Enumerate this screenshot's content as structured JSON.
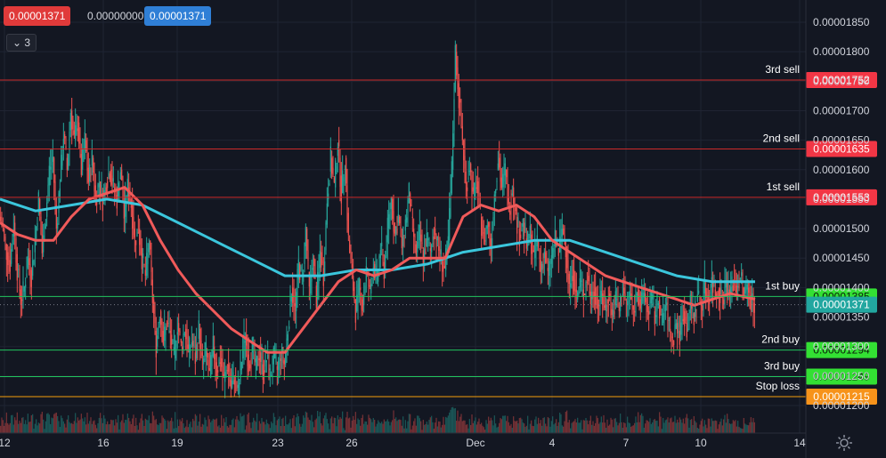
{
  "header": {
    "sell_price": "0.00001371",
    "spread": "0.00000000",
    "buy_price": "0.00001371",
    "indicator_toggle_label": "3",
    "indicator_chevron_icon": "chevron-down-icon"
  },
  "colors": {
    "background": "#131722",
    "grid": "#1f2433",
    "text": "#d1d4dc",
    "up_candle": "#26a69a",
    "down_candle": "#ef5350",
    "sell_line": "#cc2a2a",
    "buy_line": "#22c55e",
    "stop_line": "#f59e0b",
    "ma_fast": "#f05a5a",
    "ma_slow": "#3bc6dc",
    "sell_tag": "#f23645",
    "buy_tag": "#33e033",
    "stop_tag": "#f7931a",
    "current_tag": "#22a7a0"
  },
  "settings_icon": "gear-icon",
  "chart_data": {
    "type": "candlestick",
    "ylim": [
      1.17e-05,
      1.87e-05
    ],
    "y_ticks": [
      "0.00001850",
      "0.00001800",
      "0.00001750",
      "0.00001700",
      "0.00001650",
      "0.00001600",
      "0.00001550",
      "0.00001500",
      "0.00001450",
      "0.00001400",
      "0.00001350",
      "0.00001300",
      "0.00001250",
      "0.00001200"
    ],
    "x_ticks": [
      "12",
      "16",
      "19",
      "23",
      "26",
      "Dec",
      "4",
      "7",
      "10",
      "14"
    ],
    "levels": [
      {
        "label": "3rd sell",
        "value": "0.00001752",
        "kind": "sell"
      },
      {
        "label": "2nd sell",
        "value": "0.00001635",
        "kind": "sell"
      },
      {
        "label": "1st sell",
        "value": "0.00001553",
        "kind": "sell"
      },
      {
        "label": "1st buy",
        "value": "0.00001385",
        "kind": "buy"
      },
      {
        "label": "2nd buy",
        "value": "0.00001294",
        "kind": "buy"
      },
      {
        "label": "3rd buy",
        "value": "0.00001249",
        "kind": "buy"
      },
      {
        "label": "Stop loss",
        "value": "0.00001215",
        "kind": "stop"
      }
    ],
    "current_price": "0.00001371",
    "close_points": [
      [
        0,
        1.52e-05
      ],
      [
        4,
        1.5e-05
      ],
      [
        8,
        1.46e-05
      ],
      [
        12,
        1.44e-05
      ],
      [
        16,
        1.51e-05
      ],
      [
        20,
        1.43e-05
      ],
      [
        24,
        1.38e-05
      ],
      [
        28,
        1.4e-05
      ],
      [
        32,
        1.45e-05
      ],
      [
        36,
        1.42e-05
      ],
      [
        40,
        1.48e-05
      ],
      [
        44,
        1.55e-05
      ],
      [
        48,
        1.46e-05
      ],
      [
        52,
        1.52e-05
      ],
      [
        56,
        1.6e-05
      ],
      [
        60,
        1.62e-05
      ],
      [
        64,
        1.5e-05
      ],
      [
        68,
        1.58e-05
      ],
      [
        72,
        1.66e-05
      ],
      [
        76,
        1.6e-05
      ],
      [
        80,
        1.7e-05
      ],
      [
        84,
        1.65e-05
      ],
      [
        88,
        1.68e-05
      ],
      [
        92,
        1.6e-05
      ],
      [
        96,
        1.65e-05
      ],
      [
        100,
        1.58e-05
      ],
      [
        104,
        1.62e-05
      ],
      [
        108,
        1.55e-05
      ],
      [
        112,
        1.58e-05
      ],
      [
        116,
        1.55e-05
      ],
      [
        120,
        1.58e-05
      ],
      [
        124,
        1.6e-05
      ],
      [
        128,
        1.57e-05
      ],
      [
        132,
        1.55e-05
      ],
      [
        136,
        1.6e-05
      ],
      [
        140,
        1.52e-05
      ],
      [
        144,
        1.57e-05
      ],
      [
        148,
        1.54e-05
      ],
      [
        152,
        1.48e-05
      ],
      [
        156,
        1.5e-05
      ],
      [
        160,
        1.45e-05
      ],
      [
        164,
        1.42e-05
      ],
      [
        168,
        1.48e-05
      ],
      [
        172,
        1.38e-05
      ],
      [
        176,
        1.3e-05
      ],
      [
        180,
        1.36e-05
      ],
      [
        184,
        1.31e-05
      ],
      [
        188,
        1.34e-05
      ],
      [
        192,
        1.32e-05
      ],
      [
        196,
        1.28e-05
      ],
      [
        200,
        1.34e-05
      ],
      [
        204,
        1.3e-05
      ],
      [
        208,
        1.33e-05
      ],
      [
        212,
        1.29e-05
      ],
      [
        216,
        1.31e-05
      ],
      [
        220,
        1.28e-05
      ],
      [
        224,
        1.33e-05
      ],
      [
        228,
        1.27e-05
      ],
      [
        232,
        1.29e-05
      ],
      [
        236,
        1.25e-05
      ],
      [
        240,
        1.3e-05
      ],
      [
        244,
        1.26e-05
      ],
      [
        248,
        1.28e-05
      ],
      [
        252,
        1.24e-05
      ],
      [
        256,
        1.27e-05
      ],
      [
        260,
        1.23e-05
      ],
      [
        264,
        1.25e-05
      ],
      [
        268,
        1.22e-05
      ],
      [
        272,
        1.28e-05
      ],
      [
        276,
        1.32e-05
      ],
      [
        280,
        1.27e-05
      ],
      [
        284,
        1.3e-05
      ],
      [
        288,
        1.26e-05
      ],
      [
        292,
        1.29e-05
      ],
      [
        296,
        1.26e-05
      ],
      [
        300,
        1.28e-05
      ],
      [
        304,
        1.25e-05
      ],
      [
        308,
        1.28e-05
      ],
      [
        312,
        1.26e-05
      ],
      [
        316,
        1.29e-05
      ],
      [
        320,
        1.27e-05
      ],
      [
        324,
        1.33e-05
      ],
      [
        328,
        1.4e-05
      ],
      [
        332,
        1.36e-05
      ],
      [
        336,
        1.44e-05
      ],
      [
        340,
        1.41e-05
      ],
      [
        344,
        1.5e-05
      ],
      [
        348,
        1.39e-05
      ],
      [
        352,
        1.45e-05
      ],
      [
        356,
        1.38e-05
      ],
      [
        360,
        1.46e-05
      ],
      [
        364,
        1.42e-05
      ],
      [
        368,
        1.55e-05
      ],
      [
        372,
        1.62e-05
      ],
      [
        376,
        1.57e-05
      ],
      [
        380,
        1.65e-05
      ],
      [
        384,
        1.56e-05
      ],
      [
        388,
        1.62e-05
      ],
      [
        392,
        1.48e-05
      ],
      [
        396,
        1.42e-05
      ],
      [
        400,
        1.36e-05
      ],
      [
        404,
        1.4e-05
      ],
      [
        408,
        1.37e-05
      ],
      [
        412,
        1.43e-05
      ],
      [
        416,
        1.39e-05
      ],
      [
        420,
        1.44e-05
      ],
      [
        424,
        1.41e-05
      ],
      [
        428,
        1.47e-05
      ],
      [
        432,
        1.43e-05
      ],
      [
        436,
        1.5e-05
      ],
      [
        440,
        1.55e-05
      ],
      [
        444,
        1.49e-05
      ],
      [
        448,
        1.52e-05
      ],
      [
        452,
        1.47e-05
      ],
      [
        456,
        1.51e-05
      ],
      [
        460,
        1.56e-05
      ],
      [
        464,
        1.5e-05
      ],
      [
        468,
        1.46e-05
      ],
      [
        472,
        1.49e-05
      ],
      [
        476,
        1.45e-05
      ],
      [
        480,
        1.48e-05
      ],
      [
        484,
        1.46e-05
      ],
      [
        488,
        1.5e-05
      ],
      [
        492,
        1.47e-05
      ],
      [
        496,
        1.45e-05
      ],
      [
        500,
        1.43e-05
      ],
      [
        504,
        1.48e-05
      ],
      [
        508,
        1.6e-05
      ],
      [
        512,
        1.8e-05
      ],
      [
        516,
        1.72e-05
      ],
      [
        520,
        1.65e-05
      ],
      [
        524,
        1.57e-05
      ],
      [
        528,
        1.61e-05
      ],
      [
        532,
        1.55e-05
      ],
      [
        536,
        1.58e-05
      ],
      [
        540,
        1.52e-05
      ],
      [
        544,
        1.48e-05
      ],
      [
        548,
        1.51e-05
      ],
      [
        552,
        1.47e-05
      ],
      [
        556,
        1.56e-05
      ],
      [
        560,
        1.62e-05
      ],
      [
        564,
        1.57e-05
      ],
      [
        568,
        1.6e-05
      ],
      [
        572,
        1.53e-05
      ],
      [
        576,
        1.57e-05
      ],
      [
        580,
        1.52e-05
      ],
      [
        584,
        1.49e-05
      ],
      [
        588,
        1.51e-05
      ],
      [
        592,
        1.47e-05
      ],
      [
        596,
        1.49e-05
      ],
      [
        600,
        1.45e-05
      ],
      [
        604,
        1.48e-05
      ],
      [
        608,
        1.43e-05
      ],
      [
        612,
        1.46e-05
      ],
      [
        616,
        1.42e-05
      ],
      [
        620,
        1.45e-05
      ],
      [
        624,
        1.48e-05
      ],
      [
        628,
        1.46e-05
      ],
      [
        632,
        1.5e-05
      ],
      [
        636,
        1.47e-05
      ],
      [
        640,
        1.4e-05
      ],
      [
        644,
        1.43e-05
      ],
      [
        648,
        1.38e-05
      ],
      [
        652,
        1.41e-05
      ],
      [
        656,
        1.39e-05
      ],
      [
        660,
        1.42e-05
      ],
      [
        664,
        1.38e-05
      ],
      [
        668,
        1.4e-05
      ],
      [
        672,
        1.37e-05
      ],
      [
        676,
        1.39e-05
      ],
      [
        680,
        1.36e-05
      ],
      [
        684,
        1.39e-05
      ],
      [
        688,
        1.35e-05
      ],
      [
        692,
        1.38e-05
      ],
      [
        696,
        1.36e-05
      ],
      [
        700,
        1.4e-05
      ],
      [
        704,
        1.37e-05
      ],
      [
        708,
        1.39e-05
      ],
      [
        712,
        1.36e-05
      ],
      [
        716,
        1.4e-05
      ],
      [
        720,
        1.37e-05
      ],
      [
        724,
        1.39e-05
      ],
      [
        728,
        1.36e-05
      ],
      [
        732,
        1.38e-05
      ],
      [
        736,
        1.35e-05
      ],
      [
        740,
        1.38e-05
      ],
      [
        744,
        1.34e-05
      ],
      [
        748,
        1.37e-05
      ],
      [
        752,
        1.33e-05
      ],
      [
        756,
        1.31e-05
      ],
      [
        760,
        1.34e-05
      ],
      [
        764,
        1.32e-05
      ],
      [
        768,
        1.36e-05
      ],
      [
        772,
        1.33e-05
      ],
      [
        776,
        1.37e-05
      ],
      [
        780,
        1.35e-05
      ],
      [
        784,
        1.39e-05
      ],
      [
        788,
        1.37e-05
      ],
      [
        792,
        1.4e-05
      ],
      [
        796,
        1.38e-05
      ],
      [
        800,
        1.41e-05
      ],
      [
        804,
        1.39e-05
      ],
      [
        808,
        1.4e-05
      ],
      [
        812,
        1.38e-05
      ],
      [
        816,
        1.41e-05
      ],
      [
        820,
        1.39e-05
      ],
      [
        824,
        1.41e-05
      ],
      [
        828,
        1.4e-05
      ],
      [
        832,
        1.42e-05
      ],
      [
        836,
        1.39e-05
      ],
      [
        840,
        1.4e-05
      ],
      [
        844,
        1.38e-05
      ],
      [
        848,
        1.37e-05
      ]
    ],
    "ma_fast": [
      [
        0,
        1.51e-05
      ],
      [
        20,
        1.49e-05
      ],
      [
        40,
        1.48e-05
      ],
      [
        60,
        1.48e-05
      ],
      [
        80,
        1.52e-05
      ],
      [
        100,
        1.55e-05
      ],
      [
        120,
        1.56e-05
      ],
      [
        140,
        1.57e-05
      ],
      [
        160,
        1.54e-05
      ],
      [
        180,
        1.48e-05
      ],
      [
        200,
        1.43e-05
      ],
      [
        220,
        1.39e-05
      ],
      [
        240,
        1.36e-05
      ],
      [
        260,
        1.33e-05
      ],
      [
        280,
        1.31e-05
      ],
      [
        300,
        1.29e-05
      ],
      [
        320,
        1.29e-05
      ],
      [
        340,
        1.33e-05
      ],
      [
        360,
        1.37e-05
      ],
      [
        380,
        1.41e-05
      ],
      [
        400,
        1.43e-05
      ],
      [
        420,
        1.42e-05
      ],
      [
        440,
        1.43e-05
      ],
      [
        460,
        1.45e-05
      ],
      [
        480,
        1.45e-05
      ],
      [
        500,
        1.45e-05
      ],
      [
        520,
        1.52e-05
      ],
      [
        540,
        1.54e-05
      ],
      [
        560,
        1.53e-05
      ],
      [
        580,
        1.54e-05
      ],
      [
        600,
        1.52e-05
      ],
      [
        620,
        1.48e-05
      ],
      [
        640,
        1.46e-05
      ],
      [
        660,
        1.44e-05
      ],
      [
        680,
        1.42e-05
      ],
      [
        700,
        1.41e-05
      ],
      [
        720,
        1.4e-05
      ],
      [
        740,
        1.39e-05
      ],
      [
        760,
        1.38e-05
      ],
      [
        780,
        1.37e-05
      ],
      [
        800,
        1.38e-05
      ],
      [
        820,
        1.39e-05
      ],
      [
        848,
        1.38e-05
      ]
    ],
    "ma_slow": [
      [
        0,
        1.55e-05
      ],
      [
        40,
        1.53e-05
      ],
      [
        80,
        1.54e-05
      ],
      [
        120,
        1.55e-05
      ],
      [
        160,
        1.54e-05
      ],
      [
        200,
        1.51e-05
      ],
      [
        240,
        1.48e-05
      ],
      [
        280,
        1.45e-05
      ],
      [
        320,
        1.42e-05
      ],
      [
        360,
        1.42e-05
      ],
      [
        400,
        1.43e-05
      ],
      [
        440,
        1.43e-05
      ],
      [
        480,
        1.44e-05
      ],
      [
        520,
        1.46e-05
      ],
      [
        560,
        1.47e-05
      ],
      [
        600,
        1.48e-05
      ],
      [
        640,
        1.48e-05
      ],
      [
        680,
        1.46e-05
      ],
      [
        720,
        1.44e-05
      ],
      [
        760,
        1.42e-05
      ],
      [
        800,
        1.41e-05
      ],
      [
        848,
        1.41e-05
      ]
    ]
  }
}
